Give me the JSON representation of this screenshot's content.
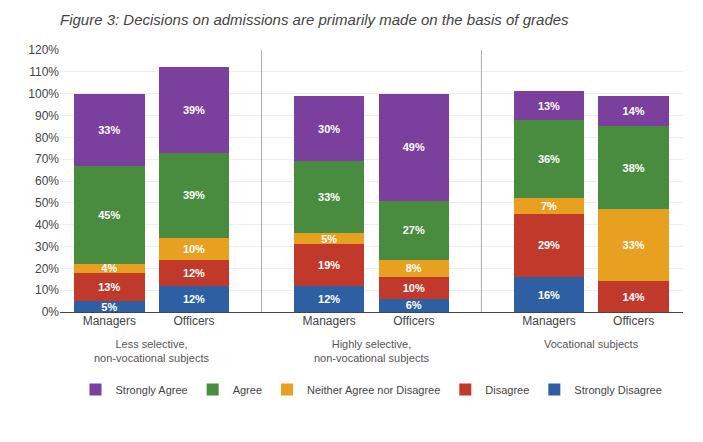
{
  "chart_data": {
    "type": "bar",
    "title": "Figure 3: Decisions on admissions are primarily made on the basis of grades",
    "categories": [
      "Managers",
      "Officers",
      "Managers",
      "Officers",
      "Managers",
      "Officers"
    ],
    "annotations": [
      "Less selective,\nnon-vocational subjects",
      "Highly selective,\nnon-vocational subjects",
      "Vocational subjects"
    ],
    "series": [
      {
        "name": "Strongly Disagree",
        "color": "#2E5FA3",
        "values": [
          5,
          12,
          12,
          6,
          16,
          0
        ],
        "value_labels": [
          "5%",
          "12%",
          "12%",
          "6%",
          "16%",
          null
        ]
      },
      {
        "name": "Disagree",
        "color": "#C0392B",
        "values": [
          13,
          12,
          19,
          10,
          29,
          14
        ],
        "value_labels": [
          "13%",
          "12%",
          "19%",
          "10%",
          "29%",
          "14%"
        ]
      },
      {
        "name": "Neither Agree nor Disagree",
        "color": "#E8A020",
        "values": [
          4,
          10,
          5,
          8,
          7,
          33
        ],
        "value_labels": [
          "4%",
          "10%",
          "5%",
          "8%",
          "7%",
          "33%"
        ]
      },
      {
        "name": "Agree",
        "color": "#4A8C3F",
        "values": [
          45,
          39,
          33,
          27,
          36,
          38
        ],
        "value_labels": [
          "45%",
          "39%",
          "33%",
          "27%",
          "36%",
          "38%"
        ]
      },
      {
        "name": "Strongly Agree",
        "color": "#7B3F9E",
        "values": [
          33,
          39,
          30,
          49,
          13,
          14
        ],
        "value_labels": [
          "33%",
          "39%",
          "30%",
          "49%",
          "13%",
          "14%"
        ]
      }
    ],
    "stacked": true,
    "data_labels": true,
    "ylim": [
      0,
      120
    ],
    "yticks": [
      {
        "value": 0,
        "label": "0%"
      },
      {
        "value": 10,
        "label": "10%"
      },
      {
        "value": 20,
        "label": "20%"
      },
      {
        "value": 30,
        "label": "30%"
      },
      {
        "value": 40,
        "label": "40%"
      },
      {
        "value": 50,
        "label": "50%"
      },
      {
        "value": 60,
        "label": "60%"
      },
      {
        "value": 70,
        "label": "70%"
      },
      {
        "value": 80,
        "label": "80%"
      },
      {
        "value": 90,
        "label": "90%"
      },
      {
        "value": 100,
        "label": "100%"
      },
      {
        "value": 110,
        "label": "110%"
      },
      {
        "value": 120,
        "label": "120%"
      }
    ],
    "grid": true,
    "legend": "bottom"
  }
}
